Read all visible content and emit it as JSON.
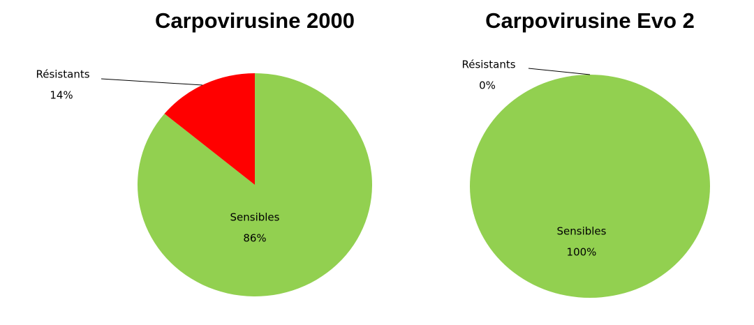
{
  "chart_data": [
    {
      "type": "pie",
      "title": "Carpovirusine 2000",
      "categories": [
        "Sensibles",
        "Résistants"
      ],
      "values": [
        86,
        14
      ],
      "value_labels": [
        "86%",
        "14%"
      ],
      "colors": [
        "#92d050",
        "#ff0000"
      ]
    },
    {
      "type": "pie",
      "title": "Carpovirusine Evo 2",
      "categories": [
        "Sensibles",
        "Résistants"
      ],
      "values": [
        100,
        0
      ],
      "value_labels": [
        "100%",
        "0%"
      ],
      "colors": [
        "#92d050",
        "#ff0000"
      ]
    }
  ]
}
